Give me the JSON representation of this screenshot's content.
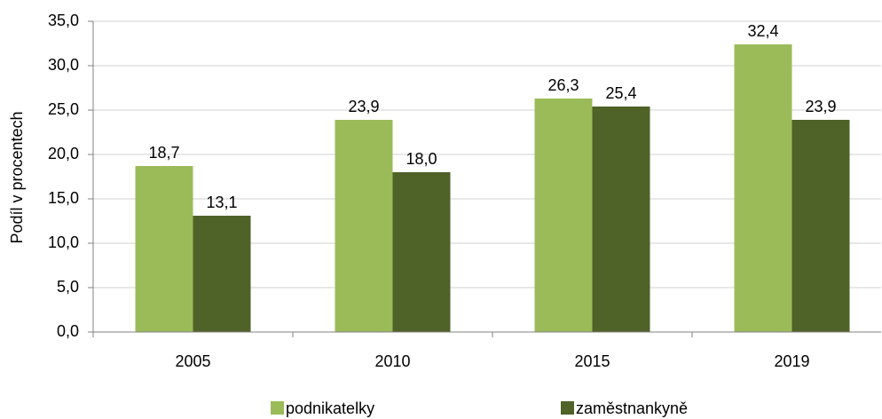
{
  "chart_data": {
    "type": "bar",
    "y_label": "Podíl v procentech",
    "categories": [
      "2005",
      "2010",
      "2015",
      "2019"
    ],
    "series": [
      {
        "name": "podnikatelky",
        "color": "#9bbb59",
        "values": [
          18.7,
          23.9,
          26.3,
          32.4
        ],
        "value_labels": [
          "18,7",
          "23,9",
          "26,3",
          "32,4"
        ]
      },
      {
        "name": "zaměstnankyně",
        "color": "#4f6228",
        "values": [
          13.1,
          18.0,
          25.4,
          23.9
        ],
        "value_labels": [
          "13,1",
          "18,0",
          "25,4",
          "23,9"
        ]
      }
    ],
    "ylim": [
      0,
      35
    ],
    "yticks": [
      {
        "value": 0,
        "label": "0,0"
      },
      {
        "value": 5,
        "label": "5,0"
      },
      {
        "value": 10,
        "label": "10,0"
      },
      {
        "value": 15,
        "label": "15,0"
      },
      {
        "value": 20,
        "label": "20,0"
      },
      {
        "value": 25,
        "label": "25,0"
      },
      {
        "value": 30,
        "label": "30,0"
      },
      {
        "value": 35,
        "label": "35,0"
      }
    ],
    "grid": true,
    "legend": "bottom"
  }
}
